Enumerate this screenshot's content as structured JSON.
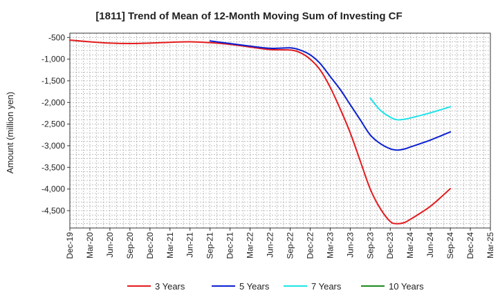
{
  "chart_data": {
    "type": "line",
    "title": "[1811]  Trend of Mean of 12-Month Moving Sum of Investing CF",
    "xlabel": "",
    "ylabel": "Amount (million yen)",
    "ylim": [
      -4900,
      -400
    ],
    "yticks": [
      -500,
      -1000,
      -1500,
      -2000,
      -2500,
      -3000,
      -3500,
      -4000,
      -4500
    ],
    "ytick_labels": [
      "-500",
      "-1,000",
      "-1,500",
      "-2,000",
      "-2,500",
      "-3,000",
      "-3,500",
      "-4,000",
      "-4,500"
    ],
    "categories": [
      "Dec-19",
      "Mar-20",
      "Jun-20",
      "Sep-20",
      "Dec-20",
      "Mar-21",
      "Jun-21",
      "Sep-21",
      "Dec-21",
      "Mar-22",
      "Jun-22",
      "Sep-22",
      "Dec-22",
      "Mar-23",
      "Jun-23",
      "Sep-23",
      "Dec-23",
      "Mar-24",
      "Jun-24",
      "Sep-24",
      "Dec-24",
      "Mar-25"
    ],
    "grid": true,
    "legend_position": "bottom",
    "series": [
      {
        "name": "3 Years",
        "color": "#e31a1c",
        "points": [
          [
            0,
            -560
          ],
          [
            1,
            -600
          ],
          [
            2,
            -630
          ],
          [
            3,
            -640
          ],
          [
            4,
            -630
          ],
          [
            5,
            -610
          ],
          [
            6,
            -600
          ],
          [
            7,
            -620
          ],
          [
            8,
            -660
          ],
          [
            9,
            -720
          ],
          [
            10,
            -780
          ],
          [
            11,
            -790
          ],
          [
            11.5,
            -850
          ],
          [
            12,
            -1000
          ],
          [
            12.5,
            -1250
          ],
          [
            13,
            -1650
          ],
          [
            13.5,
            -2150
          ],
          [
            14,
            -2700
          ],
          [
            14.5,
            -3350
          ],
          [
            15,
            -4000
          ],
          [
            15.5,
            -4450
          ],
          [
            16,
            -4750
          ],
          [
            16.33,
            -4800
          ],
          [
            16.67,
            -4780
          ],
          [
            17,
            -4700
          ],
          [
            18,
            -4400
          ],
          [
            19,
            -3990
          ]
        ]
      },
      {
        "name": "5 Years",
        "color": "#0b1fd1",
        "points": [
          [
            7,
            -580
          ],
          [
            8,
            -640
          ],
          [
            9,
            -700
          ],
          [
            10,
            -750
          ],
          [
            11,
            -740
          ],
          [
            11.5,
            -790
          ],
          [
            12,
            -900
          ],
          [
            12.5,
            -1100
          ],
          [
            13,
            -1400
          ],
          [
            13.5,
            -1700
          ],
          [
            14,
            -2050
          ],
          [
            14.5,
            -2400
          ],
          [
            15,
            -2750
          ],
          [
            15.5,
            -2950
          ],
          [
            16,
            -3070
          ],
          [
            16.33,
            -3100
          ],
          [
            16.67,
            -3080
          ],
          [
            17,
            -3030
          ],
          [
            18,
            -2870
          ],
          [
            19,
            -2680
          ]
        ]
      },
      {
        "name": "7 Years",
        "color": "#1de3e8",
        "points": [
          [
            15,
            -1900
          ],
          [
            15.5,
            -2180
          ],
          [
            16,
            -2340
          ],
          [
            16.33,
            -2400
          ],
          [
            16.67,
            -2390
          ],
          [
            17,
            -2360
          ],
          [
            18,
            -2240
          ],
          [
            19,
            -2100
          ]
        ]
      },
      {
        "name": "10 Years",
        "color": "#1a8a1a",
        "points": []
      }
    ]
  }
}
